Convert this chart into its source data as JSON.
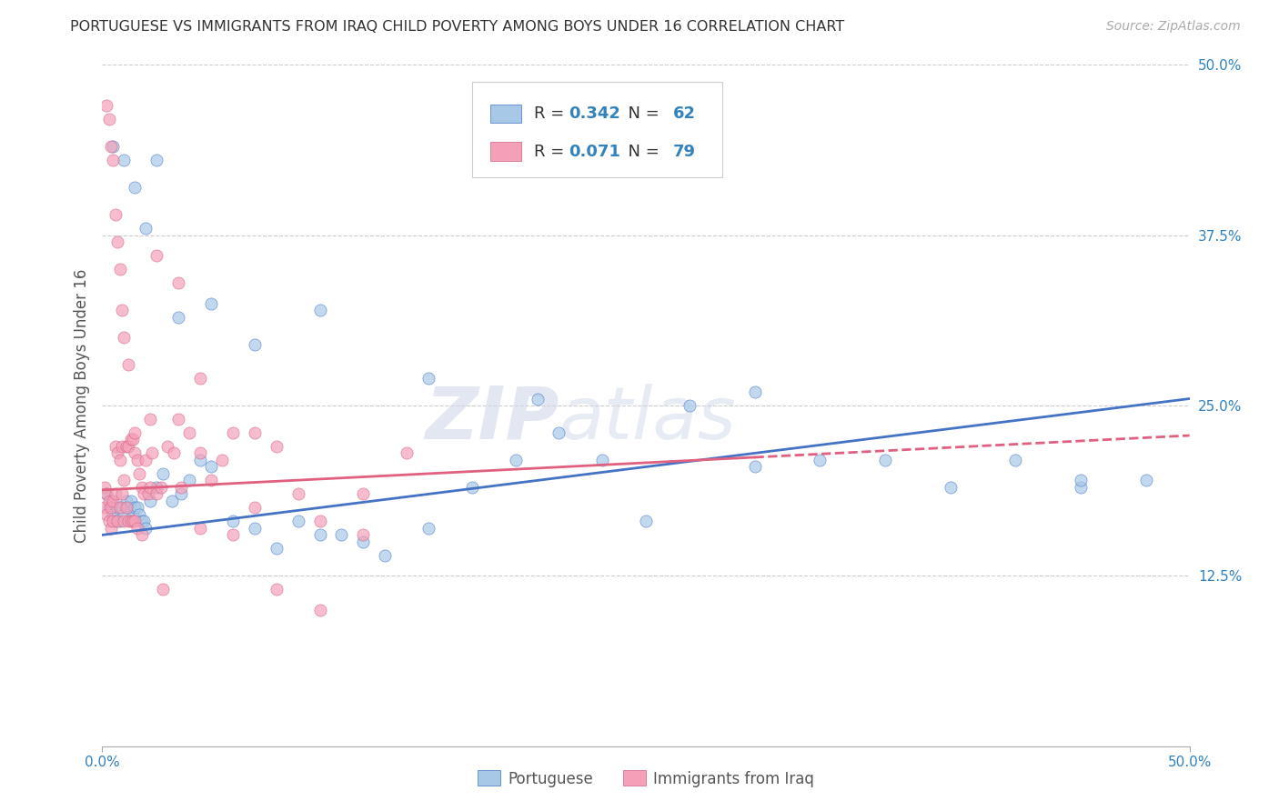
{
  "title": "PORTUGUESE VS IMMIGRANTS FROM IRAQ CHILD POVERTY AMONG BOYS UNDER 16 CORRELATION CHART",
  "source": "Source: ZipAtlas.com",
  "ylabel": "Child Poverty Among Boys Under 16",
  "xlim": [
    0,
    0.5
  ],
  "ylim": [
    0,
    0.5
  ],
  "xtick_labels": [
    "0.0%",
    "50.0%"
  ],
  "ytick_labels": [
    "12.5%",
    "25.0%",
    "37.5%",
    "50.0%"
  ],
  "ytick_vals": [
    0.125,
    0.25,
    0.375,
    0.5
  ],
  "color_blue": "#a8c8e8",
  "color_pink": "#f4a0b8",
  "line_blue": "#4472c4",
  "line_pink": "#e06080",
  "R_blue": 0.342,
  "N_blue": 62,
  "R_pink": 0.071,
  "N_pink": 79,
  "legend_labels": [
    "Portuguese",
    "Immigrants from Iraq"
  ],
  "blue_x": [
    0.002,
    0.003,
    0.004,
    0.005,
    0.006,
    0.007,
    0.008,
    0.009,
    0.01,
    0.011,
    0.012,
    0.013,
    0.014,
    0.015,
    0.016,
    0.017,
    0.018,
    0.019,
    0.02,
    0.022,
    0.025,
    0.028,
    0.032,
    0.036,
    0.04,
    0.045,
    0.05,
    0.06,
    0.07,
    0.08,
    0.09,
    0.1,
    0.11,
    0.12,
    0.13,
    0.15,
    0.17,
    0.19,
    0.21,
    0.23,
    0.25,
    0.27,
    0.3,
    0.33,
    0.36,
    0.39,
    0.42,
    0.45,
    0.48,
    0.005,
    0.01,
    0.015,
    0.02,
    0.025,
    0.035,
    0.05,
    0.07,
    0.1,
    0.15,
    0.2,
    0.3,
    0.45
  ],
  "blue_y": [
    0.185,
    0.175,
    0.18,
    0.17,
    0.165,
    0.175,
    0.165,
    0.175,
    0.17,
    0.18,
    0.175,
    0.18,
    0.17,
    0.175,
    0.175,
    0.17,
    0.165,
    0.165,
    0.16,
    0.18,
    0.19,
    0.2,
    0.18,
    0.185,
    0.195,
    0.21,
    0.205,
    0.165,
    0.16,
    0.145,
    0.165,
    0.155,
    0.155,
    0.15,
    0.14,
    0.16,
    0.19,
    0.21,
    0.23,
    0.21,
    0.165,
    0.25,
    0.205,
    0.21,
    0.21,
    0.19,
    0.21,
    0.19,
    0.195,
    0.44,
    0.43,
    0.41,
    0.38,
    0.43,
    0.315,
    0.325,
    0.295,
    0.32,
    0.27,
    0.255,
    0.26,
    0.195
  ],
  "pink_x": [
    0.001,
    0.001,
    0.002,
    0.002,
    0.003,
    0.003,
    0.004,
    0.004,
    0.005,
    0.005,
    0.006,
    0.006,
    0.007,
    0.007,
    0.008,
    0.008,
    0.009,
    0.009,
    0.01,
    0.01,
    0.011,
    0.011,
    0.012,
    0.012,
    0.013,
    0.013,
    0.014,
    0.014,
    0.015,
    0.015,
    0.016,
    0.016,
    0.017,
    0.018,
    0.019,
    0.02,
    0.021,
    0.022,
    0.023,
    0.025,
    0.027,
    0.03,
    0.033,
    0.036,
    0.04,
    0.045,
    0.05,
    0.055,
    0.06,
    0.07,
    0.08,
    0.09,
    0.1,
    0.12,
    0.14,
    0.002,
    0.003,
    0.004,
    0.005,
    0.006,
    0.007,
    0.008,
    0.009,
    0.01,
    0.012,
    0.015,
    0.018,
    0.022,
    0.028,
    0.035,
    0.045,
    0.06,
    0.08,
    0.1,
    0.12,
    0.025,
    0.035,
    0.045,
    0.07
  ],
  "pink_y": [
    0.19,
    0.175,
    0.185,
    0.17,
    0.18,
    0.165,
    0.175,
    0.16,
    0.18,
    0.165,
    0.185,
    0.22,
    0.215,
    0.165,
    0.21,
    0.175,
    0.22,
    0.185,
    0.195,
    0.165,
    0.22,
    0.175,
    0.22,
    0.165,
    0.225,
    0.165,
    0.225,
    0.165,
    0.215,
    0.165,
    0.21,
    0.16,
    0.2,
    0.19,
    0.185,
    0.21,
    0.185,
    0.19,
    0.215,
    0.185,
    0.19,
    0.22,
    0.215,
    0.19,
    0.23,
    0.215,
    0.195,
    0.21,
    0.23,
    0.175,
    0.22,
    0.185,
    0.165,
    0.185,
    0.215,
    0.47,
    0.46,
    0.44,
    0.43,
    0.39,
    0.37,
    0.35,
    0.32,
    0.3,
    0.28,
    0.23,
    0.155,
    0.24,
    0.115,
    0.24,
    0.16,
    0.155,
    0.115,
    0.1,
    0.155,
    0.36,
    0.34,
    0.27,
    0.23
  ],
  "watermark_zip": "ZIP",
  "watermark_atlas": "atlas",
  "background_color": "#ffffff",
  "grid_color": "#cccccc",
  "line_blue_start_y": 0.155,
  "line_blue_end_y": 0.255,
  "line_pink_start_y": 0.188,
  "line_pink_end_y": 0.228
}
